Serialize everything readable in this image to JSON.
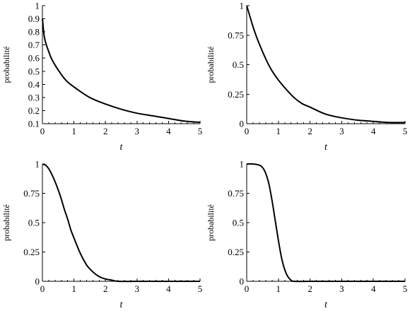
{
  "chart_data": [
    {
      "type": "line",
      "xlabel": "t",
      "ylabel": "probabilité",
      "xlim": [
        0,
        5
      ],
      "ylim": [
        0.1,
        1
      ],
      "xticks": [
        "0",
        "1",
        "2",
        "3",
        "4",
        "5"
      ],
      "yticks": [
        "0.1",
        "0.2",
        "0.3",
        "0.4",
        "0.5",
        "0.6",
        "0.7",
        "0.8",
        "0.9",
        "1"
      ],
      "grid": false,
      "series": [
        {
          "x": [
            0,
            0.05,
            0.1,
            0.2,
            0.3,
            0.5,
            0.75,
            1,
            1.5,
            2,
            2.5,
            3,
            3.5,
            4,
            4.5,
            5
          ],
          "values": [
            0.9,
            0.78,
            0.72,
            0.65,
            0.59,
            0.51,
            0.43,
            0.38,
            0.3,
            0.25,
            0.21,
            0.18,
            0.16,
            0.14,
            0.12,
            0.11
          ]
        }
      ]
    },
    {
      "type": "line",
      "xlabel": "t",
      "ylabel": "probabilité",
      "xlim": [
        0,
        5
      ],
      "ylim": [
        0,
        1
      ],
      "xticks": [
        "0",
        "1",
        "2",
        "3",
        "4",
        "5"
      ],
      "yticks": [
        "0",
        "0.25",
        "0.5",
        "0.75",
        "1"
      ],
      "grid": false,
      "series": [
        {
          "x": [
            0,
            0.25,
            0.5,
            0.75,
            1,
            1.25,
            1.5,
            1.75,
            2,
            2.5,
            3,
            3.5,
            4,
            4.5,
            5
          ],
          "values": [
            1,
            0.78,
            0.61,
            0.47,
            0.37,
            0.29,
            0.22,
            0.17,
            0.14,
            0.08,
            0.05,
            0.03,
            0.02,
            0.01,
            0.01
          ]
        }
      ]
    },
    {
      "type": "line",
      "xlabel": "t",
      "ylabel": "probabilité",
      "xlim": [
        0,
        5
      ],
      "ylim": [
        0,
        1
      ],
      "xticks": [
        "0",
        "1",
        "2",
        "3",
        "4",
        "5"
      ],
      "yticks": [
        "0",
        "0.25",
        "0.5",
        "0.75",
        "1"
      ],
      "grid": false,
      "series": [
        {
          "x": [
            0,
            0.1,
            0.2,
            0.3,
            0.4,
            0.5,
            0.6,
            0.7,
            0.8,
            0.9,
            1,
            1.2,
            1.4,
            1.6,
            1.8,
            2,
            2.2,
            2.4,
            3,
            4,
            5
          ],
          "values": [
            1,
            0.99,
            0.96,
            0.91,
            0.85,
            0.78,
            0.7,
            0.61,
            0.53,
            0.44,
            0.37,
            0.24,
            0.14,
            0.08,
            0.04,
            0.02,
            0.01,
            0,
            0,
            0,
            0
          ]
        }
      ]
    },
    {
      "type": "line",
      "xlabel": "t",
      "ylabel": "probabilité",
      "xlim": [
        0,
        5
      ],
      "ylim": [
        0,
        1
      ],
      "xticks": [
        "0",
        "1",
        "2",
        "3",
        "4",
        "5"
      ],
      "yticks": [
        "0",
        "0.25",
        "0.5",
        "0.75",
        "1"
      ],
      "grid": false,
      "series": [
        {
          "x": [
            0,
            0.2,
            0.4,
            0.5,
            0.6,
            0.7,
            0.8,
            0.9,
            1,
            1.1,
            1.2,
            1.3,
            1.4,
            1.5,
            2,
            3,
            4,
            5
          ],
          "values": [
            1,
            1,
            0.99,
            0.97,
            0.92,
            0.83,
            0.69,
            0.52,
            0.35,
            0.2,
            0.1,
            0.04,
            0.01,
            0,
            0,
            0,
            0,
            0
          ]
        }
      ]
    }
  ]
}
